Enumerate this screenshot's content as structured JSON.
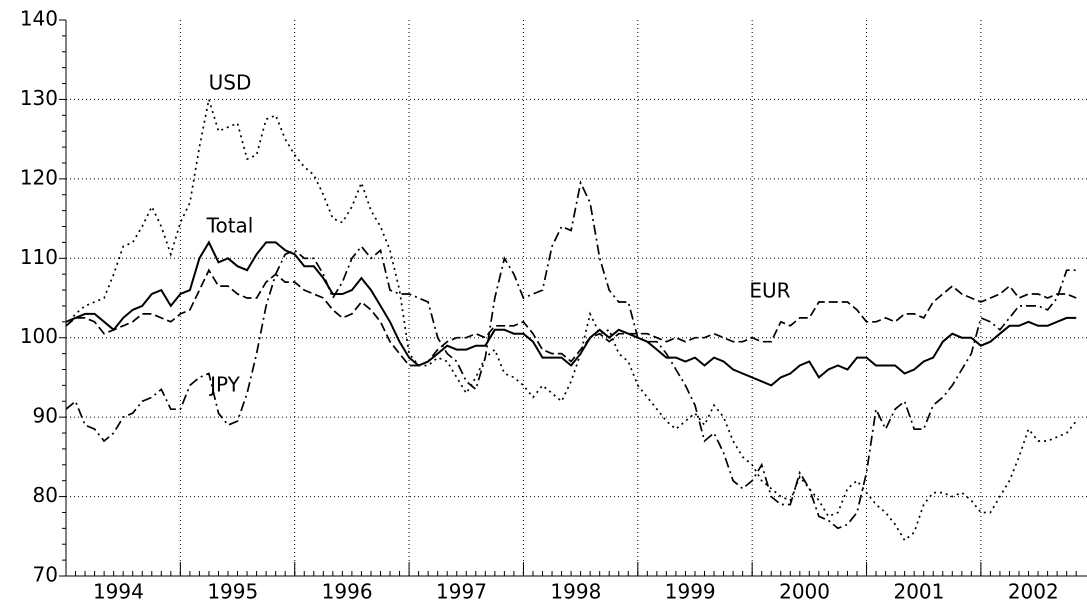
{
  "chart_data": {
    "type": "line",
    "categories": [
      null,
      null,
      null,
      null,
      null,
      null,
      "1994",
      null,
      null,
      null,
      null,
      null,
      null,
      null,
      null,
      null,
      null,
      null,
      "1995",
      null,
      null,
      null,
      null,
      null,
      null,
      null,
      null,
      null,
      null,
      null,
      "1996",
      null,
      null,
      null,
      null,
      null,
      null,
      null,
      null,
      null,
      null,
      null,
      "1997",
      null,
      null,
      null,
      null,
      null,
      null,
      null,
      null,
      null,
      null,
      null,
      "1998",
      null,
      null,
      null,
      null,
      null,
      null,
      null,
      null,
      null,
      null,
      null,
      "1999",
      null,
      null,
      null,
      null,
      null,
      null,
      null,
      null,
      null,
      null,
      null,
      "2000",
      null,
      null,
      null,
      null,
      null,
      null,
      null,
      null,
      null,
      null,
      null,
      "2001",
      null,
      null,
      null,
      null,
      null,
      null,
      null,
      null,
      null,
      null,
      null,
      "2002",
      null,
      null,
      null,
      null
    ],
    "series": [
      {
        "name": "Total",
        "color": "#000000",
        "linestyle": "solid",
        "values": [
          102,
          102.5,
          103,
          103,
          102,
          101,
          102.5,
          103.5,
          104,
          105.5,
          106,
          104,
          105.5,
          106,
          110,
          112,
          109.5,
          110,
          109,
          108.5,
          110.5,
          112,
          112,
          111,
          110.5,
          109,
          109,
          107.5,
          105.5,
          105.5,
          106,
          107.5,
          106,
          104,
          102,
          99.5,
          97.5,
          96.5,
          97,
          98,
          99,
          98.5,
          98.5,
          99,
          99,
          101,
          101,
          100.5,
          100.5,
          99.5,
          97.5,
          97.5,
          97.5,
          96.5,
          98,
          100,
          101,
          100,
          101,
          100.5,
          100,
          99.5,
          98.5,
          97.5,
          97.5,
          97,
          97.5,
          96.5,
          97.5,
          97,
          96,
          95.5,
          95,
          94.5,
          94,
          95,
          95.5,
          96.5,
          97,
          95,
          96,
          96.5,
          96,
          97.5,
          97.5,
          96.5,
          96.5,
          96.5,
          95.5,
          96,
          97,
          97.5,
          99.5,
          100.5,
          100,
          100,
          99,
          99.5,
          100.5,
          101.5,
          101.5,
          102,
          101.5,
          101.5,
          102,
          102.5,
          102.5
        ]
      },
      {
        "name": "EUR",
        "color": "#000000",
        "linestyle": "dashed",
        "values": [
          101.5,
          102.5,
          102.5,
          102,
          100.5,
          101,
          101.5,
          102,
          103,
          103,
          102.5,
          102,
          103,
          103.5,
          106,
          108.5,
          106.5,
          106.5,
          105.5,
          105,
          105,
          107,
          108,
          107,
          107,
          106,
          105.5,
          105,
          103.5,
          102.5,
          103,
          104.5,
          103.5,
          102,
          99.5,
          98,
          96.5,
          96.5,
          97,
          98.5,
          99.5,
          100,
          100,
          100.5,
          100,
          101.5,
          101.5,
          101.5,
          102,
          100.5,
          98.5,
          98,
          98,
          97,
          98.5,
          100,
          100.5,
          99.5,
          100.5,
          100.5,
          100.5,
          100.5,
          100,
          99.5,
          100,
          99.5,
          100,
          100,
          100.5,
          100,
          99.5,
          99.5,
          100,
          99.5,
          99.5,
          102,
          101.5,
          102.5,
          102.5,
          104.5,
          104.5,
          104.5,
          104.5,
          103.5,
          102,
          102,
          102.5,
          102,
          103,
          103,
          102.5,
          104.5,
          105.5,
          106.5,
          105.5,
          105,
          104.5,
          105,
          105.5,
          106.5,
          105,
          105.5,
          105.5,
          105,
          105.5,
          105.5,
          105
        ]
      },
      {
        "name": "USD",
        "color": "#000000",
        "linestyle": "dotted",
        "values": [
          101.5,
          103,
          104,
          104.5,
          105,
          108,
          111.5,
          112,
          114,
          116.5,
          114,
          110.5,
          114.5,
          117,
          124,
          130,
          126,
          126.5,
          127,
          122.5,
          123,
          127.5,
          128,
          125,
          123,
          121.5,
          120.5,
          118,
          115,
          114.5,
          116.5,
          119.5,
          116,
          114,
          111,
          106,
          98,
          96.5,
          96.5,
          97.5,
          97,
          95,
          93,
          95,
          97.5,
          98.5,
          95.5,
          95,
          94,
          92.5,
          94,
          93,
          92,
          94.5,
          98,
          103,
          100.5,
          101,
          98,
          97,
          94,
          92.5,
          91,
          89.5,
          88.5,
          89.5,
          90.5,
          89,
          91.5,
          90,
          87,
          85,
          84,
          82,
          81,
          80,
          79.5,
          82.5,
          81,
          79.5,
          77.5,
          78,
          81,
          82,
          80.5,
          79,
          78,
          76.5,
          74.5,
          75.5,
          79,
          80.5,
          80.5,
          80,
          80.5,
          79.5,
          78,
          78,
          80,
          82,
          85,
          88.5,
          87,
          87,
          87.5,
          88,
          89.5
        ]
      },
      {
        "name": "JPY",
        "color": "#000000",
        "linestyle": "dashdot",
        "values": [
          91,
          92,
          89,
          88.5,
          87,
          88,
          90,
          90.5,
          92,
          92.5,
          93.5,
          91,
          91,
          94,
          95,
          95.5,
          90.5,
          89,
          89.5,
          93,
          98,
          104,
          108,
          110.5,
          111,
          110,
          110,
          108,
          105,
          107,
          110,
          111.5,
          110,
          111,
          106,
          105.5,
          105.5,
          105,
          104.5,
          100,
          98,
          97,
          94.5,
          93.5,
          97.5,
          105,
          110,
          108,
          105,
          105.5,
          106,
          111.5,
          114,
          113.5,
          119.5,
          117,
          110,
          106,
          104.5,
          104.5,
          100,
          99.5,
          99.5,
          98,
          96,
          94,
          91.5,
          87,
          88,
          85.5,
          82,
          81,
          82,
          84,
          80,
          79,
          79,
          83,
          81,
          77.5,
          77,
          76,
          76.5,
          78,
          83,
          91,
          88.5,
          91,
          92,
          88.5,
          88.5,
          91.5,
          92.5,
          94,
          96,
          98,
          102.5,
          102,
          101,
          102.5,
          104,
          104,
          104,
          103.5,
          105,
          108.5,
          108.5
        ]
      }
    ],
    "ylim": [
      70,
      140
    ],
    "yticks": [
      70,
      80,
      90,
      100,
      110,
      120,
      130,
      140
    ],
    "grid": true
  }
}
